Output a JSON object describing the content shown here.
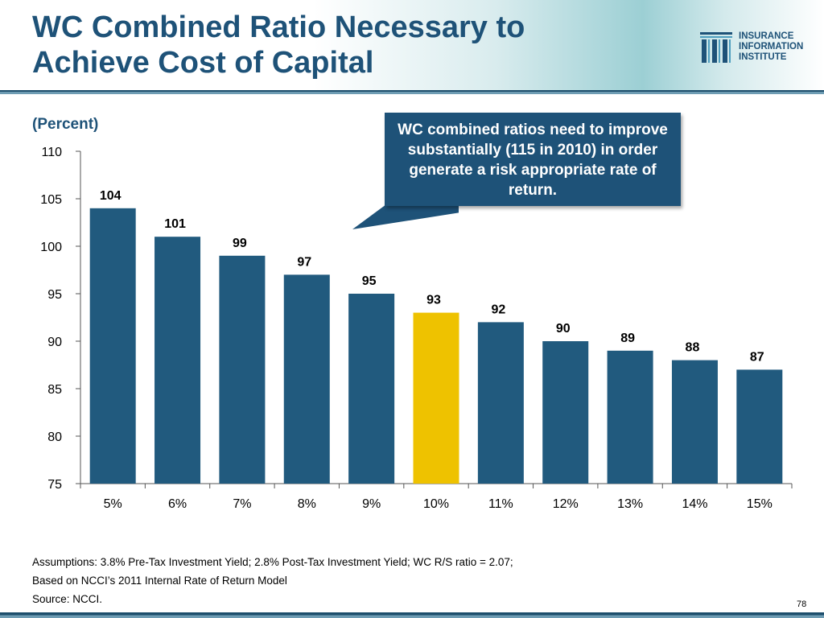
{
  "slide": {
    "title_line1": "WC Combined Ratio Necessary to",
    "title_line2": "Achieve Cost of Capital",
    "subtitle": "(Percent)",
    "callout": "WC combined ratios need to improve substantially (115 in 2010) in order generate a risk appropriate rate of return.",
    "assumptions_line1": "Assumptions:  3.8% Pre-Tax Investment Yield; 2.8% Post-Tax Investment Yield; WC R/S ratio = 2.07;",
    "assumptions_line2": "Based on NCCI’s 2011 Internal Rate of Return Model",
    "source": "Source: NCCI.",
    "page_number": "78"
  },
  "logo": {
    "line1": "INSURANCE",
    "line2": "INFORMATION",
    "line3": "INSTITUTE"
  },
  "colors": {
    "bar": "#215a7e",
    "highlight": "#eec200",
    "title": "#1e5278"
  },
  "chart_data": {
    "type": "bar",
    "categories": [
      "5%",
      "6%",
      "7%",
      "8%",
      "9%",
      "10%",
      "11%",
      "12%",
      "13%",
      "14%",
      "15%"
    ],
    "values": [
      104,
      101,
      99,
      97,
      95,
      93,
      92,
      90,
      89,
      88,
      87
    ],
    "highlight_index": 5,
    "ylim": [
      75,
      110
    ],
    "yticks": [
      75,
      80,
      85,
      90,
      95,
      100,
      105,
      110
    ],
    "grid": false,
    "legend": "none"
  }
}
